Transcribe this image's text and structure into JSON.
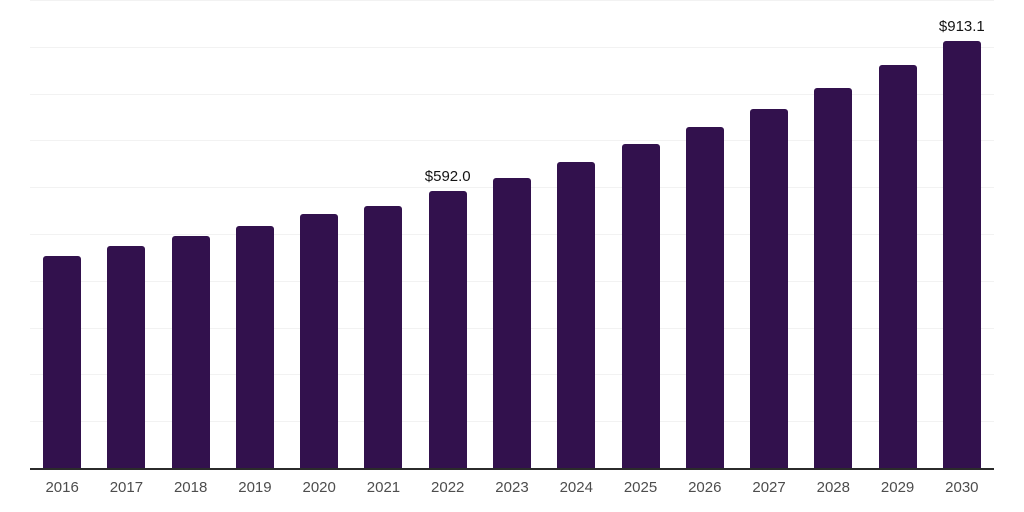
{
  "chart_data": {
    "type": "bar",
    "title": "",
    "xlabel": "",
    "ylabel": "",
    "categories": [
      "2016",
      "2017",
      "2018",
      "2019",
      "2020",
      "2021",
      "2022",
      "2023",
      "2024",
      "2025",
      "2026",
      "2027",
      "2028",
      "2029",
      "2030"
    ],
    "values": [
      452.4,
      473.6,
      494.9,
      517.3,
      542.8,
      560.9,
      592.0,
      620.5,
      654.6,
      691.9,
      729.1,
      767.4,
      812.1,
      861.1,
      913.1
    ],
    "data_labels": {
      "2022": "$592.0",
      "2030": "$913.1"
    },
    "ylim": [
      0,
      1000
    ],
    "gridline_interval": 100,
    "grid": "horizontal",
    "legend": "none",
    "colors": {
      "bar": "#32114d",
      "gridline": "#f2f2f2",
      "axis_line": "#2b2b2b",
      "tick_label": "#4d4d4d",
      "data_label": "#141414",
      "background": "#ffffff"
    }
  }
}
